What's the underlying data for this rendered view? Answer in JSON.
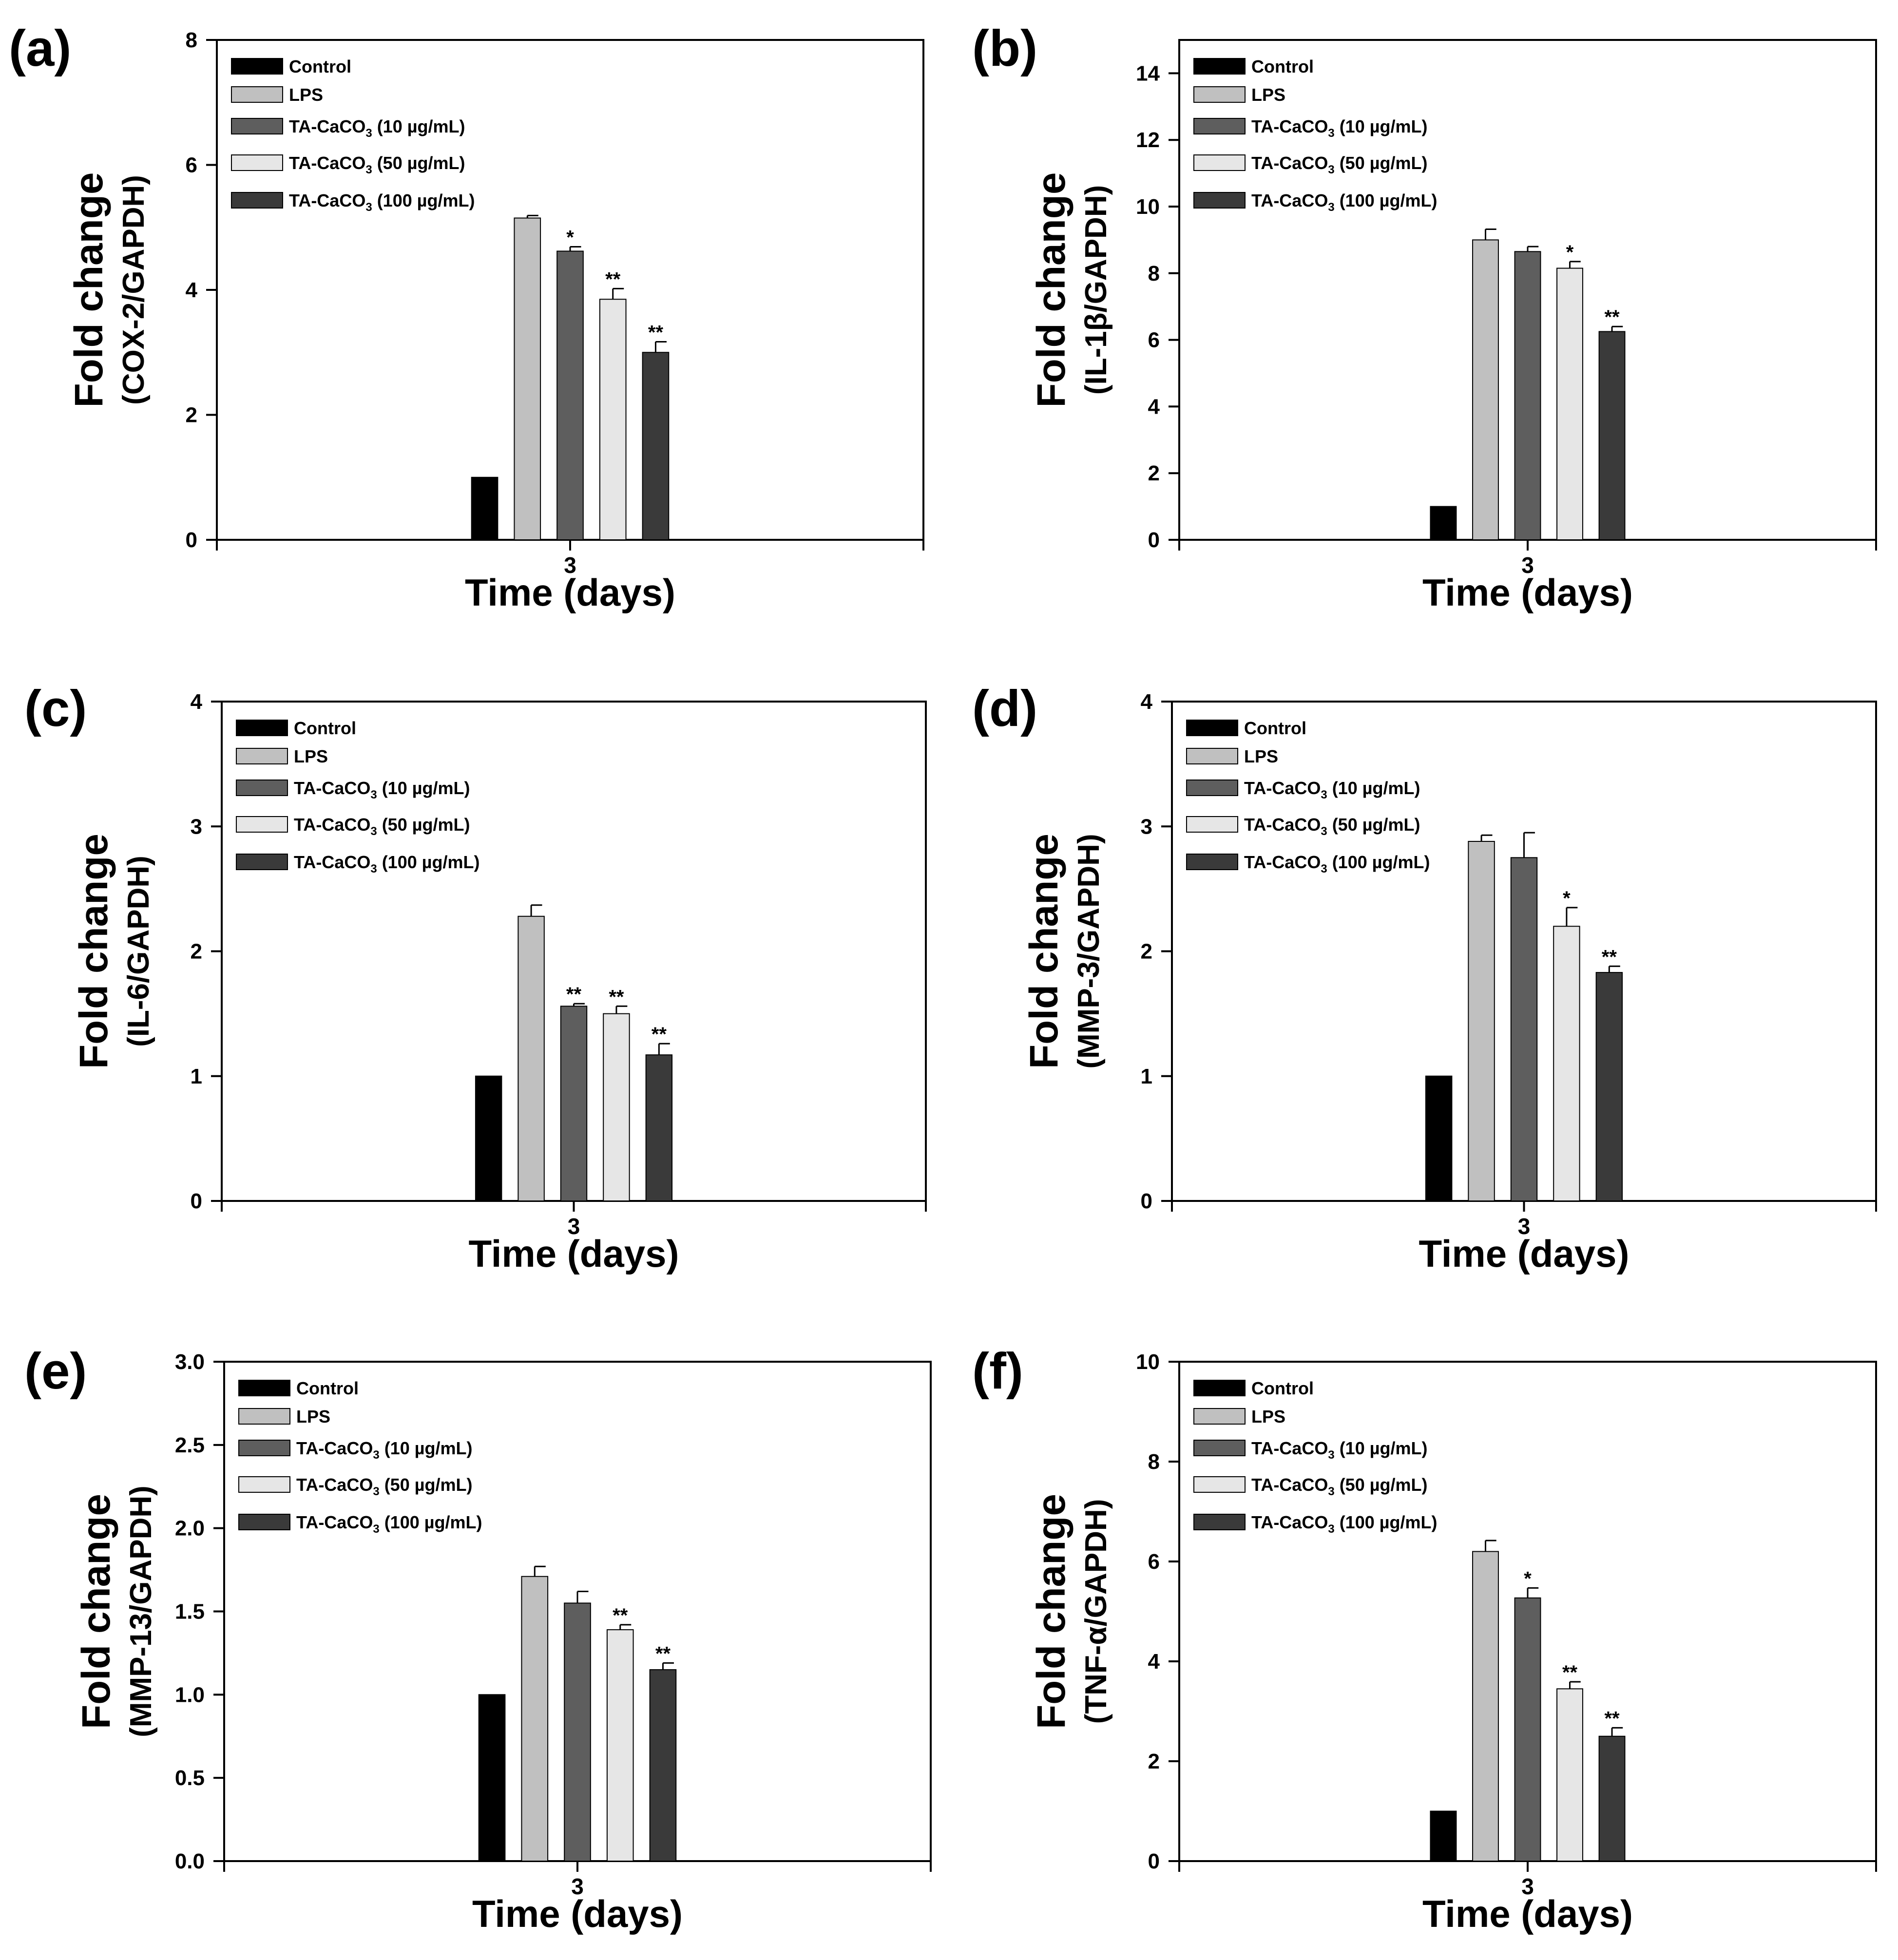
{
  "colors": {
    "control": "#000000",
    "lps": "#c0c0c0",
    "ta10": "#5e5e5e",
    "ta50": "#e6e6e6",
    "ta100": "#3a3a3a",
    "axis": "#000000"
  },
  "legend_labels": [
    {
      "pre": "Control",
      "sub": "",
      "post": ""
    },
    {
      "pre": "LPS",
      "sub": "",
      "post": ""
    },
    {
      "pre": "TA-CaCO",
      "sub": "3",
      "post": " (10 µg/mL)"
    },
    {
      "pre": "TA-CaCO",
      "sub": "3",
      "post": " (50 µg/mL)"
    },
    {
      "pre": "TA-CaCO",
      "sub": "3",
      "post": " (100 µg/mL)"
    }
  ],
  "chart_data": [
    {
      "panel": "(a)",
      "type": "bar",
      "xlabel": "Time (days)",
      "ylabel_line1": "Fold change",
      "ylabel_line2": "(COX-2/GAPDH)",
      "categories": [
        "3"
      ],
      "ylim": [
        0,
        8
      ],
      "yticks": [
        "0",
        "2",
        "4",
        "6",
        "8"
      ],
      "series": [
        {
          "name": "Control",
          "values": [
            1.0
          ],
          "error": [
            0.0
          ],
          "sig": ""
        },
        {
          "name": "LPS",
          "values": [
            5.15
          ],
          "error": [
            0.04
          ],
          "sig": ""
        },
        {
          "name": "TA-CaCO3 (10 µg/mL)",
          "values": [
            4.62
          ],
          "error": [
            0.07
          ],
          "sig": "*"
        },
        {
          "name": "TA-CaCO3 (50 µg/mL)",
          "values": [
            3.85
          ],
          "error": [
            0.17
          ],
          "sig": "**"
        },
        {
          "name": "TA-CaCO3 (100 µg/mL)",
          "values": [
            3.0
          ],
          "error": [
            0.17
          ],
          "sig": "**"
        }
      ]
    },
    {
      "panel": "(b)",
      "type": "bar",
      "xlabel": "Time (days)",
      "ylabel_line1": "Fold change",
      "ylabel_line2": "(IL-1β/GAPDH)",
      "categories": [
        "3"
      ],
      "ylim": [
        0,
        15
      ],
      "yticks": [
        "0",
        "2",
        "4",
        "6",
        "8",
        "10",
        "12",
        "14"
      ],
      "series": [
        {
          "name": "Control",
          "values": [
            1.0
          ],
          "error": [
            0.0
          ],
          "sig": ""
        },
        {
          "name": "LPS",
          "values": [
            9.0
          ],
          "error": [
            0.32
          ],
          "sig": ""
        },
        {
          "name": "TA-CaCO3 (10 µg/mL)",
          "values": [
            8.65
          ],
          "error": [
            0.15
          ],
          "sig": ""
        },
        {
          "name": "TA-CaCO3 (50 µg/mL)",
          "values": [
            8.15
          ],
          "error": [
            0.2
          ],
          "sig": "*"
        },
        {
          "name": "TA-CaCO3 (100 µg/mL)",
          "values": [
            6.25
          ],
          "error": [
            0.15
          ],
          "sig": "**"
        }
      ]
    },
    {
      "panel": "(c)",
      "type": "bar",
      "xlabel": "Time (days)",
      "ylabel_line1": "Fold change",
      "ylabel_line2": "(IL-6/GAPDH)",
      "categories": [
        "3"
      ],
      "ylim": [
        0,
        4
      ],
      "yticks": [
        "0",
        "1",
        "2",
        "3",
        "4"
      ],
      "series": [
        {
          "name": "Control",
          "values": [
            1.0
          ],
          "error": [
            0.0
          ],
          "sig": ""
        },
        {
          "name": "LPS",
          "values": [
            2.28
          ],
          "error": [
            0.09
          ],
          "sig": ""
        },
        {
          "name": "TA-CaCO3 (10 µg/mL)",
          "values": [
            1.56
          ],
          "error": [
            0.02
          ],
          "sig": "**"
        },
        {
          "name": "TA-CaCO3 (50 µg/mL)",
          "values": [
            1.5
          ],
          "error": [
            0.06
          ],
          "sig": "**"
        },
        {
          "name": "TA-CaCO3 (100 µg/mL)",
          "values": [
            1.17
          ],
          "error": [
            0.09
          ],
          "sig": "**"
        }
      ]
    },
    {
      "panel": "(d)",
      "type": "bar",
      "xlabel": "Time (days)",
      "ylabel_line1": "Fold change",
      "ylabel_line2": "(MMP-3/GAPDH)",
      "categories": [
        "3"
      ],
      "ylim": [
        0,
        4
      ],
      "yticks": [
        "0",
        "1",
        "2",
        "3",
        "4"
      ],
      "series": [
        {
          "name": "Control",
          "values": [
            1.0
          ],
          "error": [
            0.0
          ],
          "sig": ""
        },
        {
          "name": "LPS",
          "values": [
            2.88
          ],
          "error": [
            0.05
          ],
          "sig": ""
        },
        {
          "name": "TA-CaCO3 (10 µg/mL)",
          "values": [
            2.75
          ],
          "error": [
            0.2
          ],
          "sig": ""
        },
        {
          "name": "TA-CaCO3 (50 µg/mL)",
          "values": [
            2.2
          ],
          "error": [
            0.15
          ],
          "sig": "*"
        },
        {
          "name": "TA-CaCO3 (100 µg/mL)",
          "values": [
            1.83
          ],
          "error": [
            0.05
          ],
          "sig": "**"
        }
      ]
    },
    {
      "panel": "(e)",
      "type": "bar",
      "xlabel": "Time (days)",
      "ylabel_line1": "Fold change",
      "ylabel_line2": "(MMP-13/GAPDH)",
      "categories": [
        "3"
      ],
      "ylim": [
        0,
        3
      ],
      "yticks": [
        "0.0",
        "0.5",
        "1.0",
        "1.5",
        "2.0",
        "2.5",
        "3.0"
      ],
      "series": [
        {
          "name": "Control",
          "values": [
            1.0
          ],
          "error": [
            0.0
          ],
          "sig": ""
        },
        {
          "name": "LPS",
          "values": [
            1.71
          ],
          "error": [
            0.06
          ],
          "sig": ""
        },
        {
          "name": "TA-CaCO3 (10 µg/mL)",
          "values": [
            1.55
          ],
          "error": [
            0.07
          ],
          "sig": ""
        },
        {
          "name": "TA-CaCO3 (50 µg/mL)",
          "values": [
            1.39
          ],
          "error": [
            0.03
          ],
          "sig": "**"
        },
        {
          "name": "TA-CaCO3 (100 µg/mL)",
          "values": [
            1.15
          ],
          "error": [
            0.04
          ],
          "sig": "**"
        }
      ]
    },
    {
      "panel": "(f)",
      "type": "bar",
      "xlabel": "Time (days)",
      "ylabel_line1": "Fold change",
      "ylabel_line2": "(TNF-α/GAPDH)",
      "categories": [
        "3"
      ],
      "ylim": [
        0,
        10
      ],
      "yticks": [
        "0",
        "2",
        "4",
        "6",
        "8",
        "10"
      ],
      "series": [
        {
          "name": "Control",
          "values": [
            1.0
          ],
          "error": [
            0.0
          ],
          "sig": ""
        },
        {
          "name": "LPS",
          "values": [
            6.2
          ],
          "error": [
            0.22
          ],
          "sig": ""
        },
        {
          "name": "TA-CaCO3 (10 µg/mL)",
          "values": [
            5.27
          ],
          "error": [
            0.2
          ],
          "sig": "*"
        },
        {
          "name": "TA-CaCO3 (50 µg/mL)",
          "values": [
            3.45
          ],
          "error": [
            0.14
          ],
          "sig": "**"
        },
        {
          "name": "TA-CaCO3 (100 µg/mL)",
          "values": [
            2.5
          ],
          "error": [
            0.17
          ],
          "sig": "**"
        }
      ]
    }
  ]
}
